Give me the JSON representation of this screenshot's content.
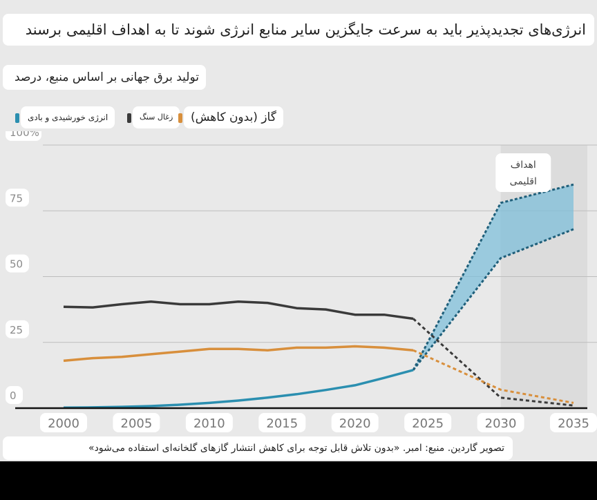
{
  "page": {
    "title": "انرژی‌های تجدیدپذیر باید به سرعت جایگزین سایر منابع انرژی شوند تا به اهداف اقلیمی برسند",
    "subtitle": "تولید برق جهانی بر اساس منبع، درصد",
    "source": "تصویر گاردین. منبع: امبر. «بدون تلاش قابل توجه برای کاهش انتشار گازهای گلخانه‌ای استفاده می‌شود»"
  },
  "colors": {
    "background": "#e9e9e9",
    "solar_wind": "#2b8fb0",
    "solar_wind_fill": "#7fbfd9",
    "coal": "#3a3a3a",
    "gas": "#d88f3c",
    "target_band": "#dcdcdc",
    "gridline": "#bdbdbd",
    "baseline": "#111111"
  },
  "chart_data": {
    "type": "line",
    "title": "انرژی‌های تجدیدپذیر باید به سرعت جایگزین سایر منابع انرژی شوند تا به اهداف اقلیمی برسند",
    "subtitle": "تولید برق جهانی بر اساس منبع، درصد",
    "xlim": [
      2000,
      2035
    ],
    "ylim": [
      0,
      100
    ],
    "x_ticks": [
      "2000",
      "2005",
      "2010",
      "2015",
      "2020",
      "2025",
      "2030",
      "2035"
    ],
    "y_ticks": [
      "0",
      "25",
      "50",
      "75",
      "100%"
    ],
    "y_tick_values": [
      0,
      25,
      50,
      75,
      100
    ],
    "grid": true,
    "legend_position": "top-left",
    "target_band": {
      "label": "اهداف اقلیمی",
      "x_start": 2030,
      "x_end": 2035
    },
    "series": [
      {
        "name": "انرژی خورشیدی و بادی",
        "color_key": "solar_wind",
        "historical": {
          "x": [
            2000,
            2002,
            2004,
            2006,
            2008,
            2010,
            2012,
            2014,
            2016,
            2018,
            2020,
            2022,
            2024
          ],
          "y": [
            0.2,
            0.3,
            0.5,
            0.8,
            1.3,
            2.0,
            2.9,
            4.0,
            5.3,
            6.9,
            8.7,
            11.5,
            14.5
          ]
        },
        "projection_range": {
          "x": [
            2024,
            2030,
            2035
          ],
          "y_low": [
            14.5,
            57,
            68
          ],
          "y_high": [
            14.5,
            78,
            85
          ]
        }
      },
      {
        "name": "زغال سنگ",
        "color_key": "coal",
        "historical": {
          "x": [
            2000,
            2002,
            2004,
            2006,
            2008,
            2010,
            2012,
            2014,
            2016,
            2018,
            2020,
            2022,
            2024
          ],
          "y": [
            38.5,
            38.3,
            39.5,
            40.5,
            39.5,
            39.5,
            40.5,
            40.0,
            38.0,
            37.5,
            35.5,
            35.5,
            34.0
          ]
        },
        "projection": {
          "x": [
            2024,
            2030,
            2035
          ],
          "y": [
            34.0,
            4,
            1
          ]
        }
      },
      {
        "name": "گاز (بدون کاهش)",
        "color_key": "gas",
        "historical": {
          "x": [
            2000,
            2002,
            2004,
            2006,
            2008,
            2010,
            2012,
            2014,
            2016,
            2018,
            2020,
            2022,
            2024
          ],
          "y": [
            18.0,
            19.0,
            19.5,
            20.5,
            21.5,
            22.5,
            22.5,
            22.0,
            23.0,
            23.0,
            23.5,
            23.0,
            22.0
          ]
        },
        "projection": {
          "x": [
            2024,
            2030,
            2035
          ],
          "y": [
            22.0,
            7,
            2
          ]
        }
      }
    ]
  }
}
